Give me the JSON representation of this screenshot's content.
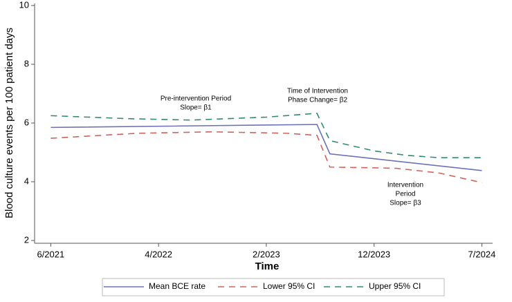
{
  "chart_data": {
    "type": "line",
    "xlabel": "Time",
    "ylabel": "Blood culture events per 100 patient days",
    "xlim": [
      -0.15,
      4.1
    ],
    "xticks": [
      {
        "value": 0,
        "label": "6/2021"
      },
      {
        "value": 1,
        "label": "4/2022"
      },
      {
        "value": 2,
        "label": "2/2023"
      },
      {
        "value": 3,
        "label": "12/2023"
      },
      {
        "value": 4,
        "label": "7/2024"
      }
    ],
    "ylim": [
      2,
      10
    ],
    "yticks": [
      2,
      4,
      6,
      8,
      10
    ],
    "series": [
      {
        "name": "Mean BCE rate",
        "color": "#6b70b8",
        "dash": "solid",
        "x": [
          0,
          2.47,
          2.59,
          4.0
        ],
        "values": [
          5.85,
          5.95,
          4.95,
          4.38
        ]
      },
      {
        "name": "Lower 95% CI",
        "color": "#d0625a",
        "dash": "dashed",
        "x": [
          0,
          0.8,
          1.5,
          2.2,
          2.47,
          2.59,
          3.2,
          3.6,
          4.0
        ],
        "values": [
          5.48,
          5.65,
          5.7,
          5.65,
          5.58,
          4.5,
          4.46,
          4.3,
          3.97
        ]
      },
      {
        "name": "Upper 95% CI",
        "color": "#2e8b6e",
        "dash": "dashed",
        "x": [
          0,
          0.7,
          1.3,
          2.0,
          2.47,
          2.59,
          3.0,
          3.3,
          3.6,
          4.0
        ],
        "values": [
          6.25,
          6.15,
          6.1,
          6.2,
          6.33,
          5.4,
          5.05,
          4.9,
          4.82,
          4.82
        ]
      }
    ],
    "annotations": [
      {
        "lines": [
          "Pre-intervention Period",
          "Slope= β1"
        ]
      },
      {
        "lines": [
          "Time of Intervention",
          "Phase Change= β2"
        ]
      },
      {
        "lines": [
          "Intervention",
          "Period",
          "Slope= β3"
        ]
      }
    ]
  }
}
